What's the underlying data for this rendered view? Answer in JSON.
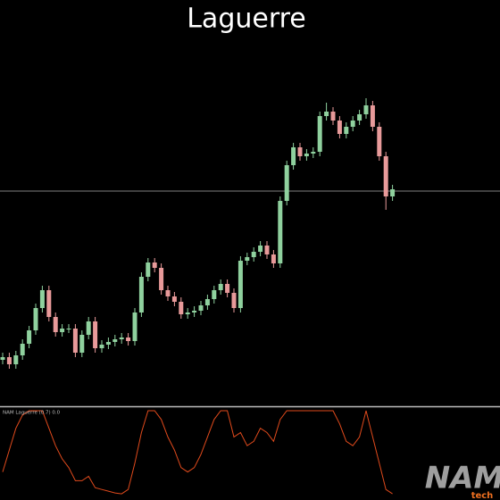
{
  "chart_data": [
    {
      "type": "candlestick",
      "title": "Laguerre",
      "up_color": "#8fd19e",
      "down_color": "#e89a9a",
      "ylim": [
        0,
        455
      ],
      "hline": 241,
      "candles": [
        [
          52,
          60,
          47,
          55
        ],
        [
          55,
          60,
          42,
          47
        ],
        [
          47,
          62,
          42,
          57
        ],
        [
          57,
          75,
          52,
          70
        ],
        [
          70,
          90,
          65,
          85
        ],
        [
          85,
          115,
          80,
          110
        ],
        [
          110,
          135,
          105,
          130
        ],
        [
          130,
          135,
          95,
          100
        ],
        [
          100,
          105,
          78,
          83
        ],
        [
          83,
          92,
          78,
          87
        ],
        [
          87,
          92,
          82,
          87
        ],
        [
          87,
          92,
          55,
          60
        ],
        [
          60,
          85,
          55,
          80
        ],
        [
          80,
          100,
          75,
          95
        ],
        [
          95,
          100,
          60,
          65
        ],
        [
          65,
          74,
          60,
          69
        ],
        [
          69,
          77,
          64,
          72
        ],
        [
          72,
          80,
          67,
          75
        ],
        [
          75,
          82,
          70,
          77
        ],
        [
          77,
          82,
          68,
          73
        ],
        [
          73,
          110,
          68,
          105
        ],
        [
          105,
          150,
          100,
          145
        ],
        [
          145,
          166,
          140,
          161
        ],
        [
          161,
          166,
          150,
          155
        ],
        [
          155,
          160,
          125,
          130
        ],
        [
          130,
          135,
          118,
          123
        ],
        [
          123,
          128,
          112,
          117
        ],
        [
          117,
          122,
          98,
          103
        ],
        [
          103,
          110,
          98,
          105
        ],
        [
          105,
          112,
          100,
          107
        ],
        [
          107,
          118,
          102,
          113
        ],
        [
          113,
          125,
          108,
          120
        ],
        [
          120,
          135,
          115,
          130
        ],
        [
          130,
          142,
          125,
          137
        ],
        [
          137,
          142,
          122,
          127
        ],
        [
          127,
          132,
          105,
          110
        ],
        [
          110,
          168,
          105,
          163
        ],
        [
          163,
          172,
          158,
          167
        ],
        [
          167,
          178,
          162,
          173
        ],
        [
          173,
          185,
          168,
          180
        ],
        [
          180,
          185,
          165,
          170
        ],
        [
          170,
          175,
          155,
          160
        ],
        [
          160,
          235,
          155,
          230
        ],
        [
          230,
          275,
          225,
          270
        ],
        [
          270,
          295,
          265,
          290
        ],
        [
          290,
          295,
          275,
          280
        ],
        [
          280,
          288,
          275,
          283
        ],
        [
          283,
          290,
          278,
          285
        ],
        [
          285,
          330,
          280,
          325
        ],
        [
          325,
          340,
          320,
          330
        ],
        [
          330,
          335,
          315,
          320
        ],
        [
          320,
          325,
          300,
          305
        ],
        [
          305,
          318,
          300,
          313
        ],
        [
          313,
          325,
          308,
          320
        ],
        [
          320,
          332,
          315,
          327
        ],
        [
          327,
          345,
          322,
          337
        ],
        [
          337,
          342,
          308,
          313
        ],
        [
          313,
          318,
          275,
          280
        ],
        [
          280,
          285,
          220,
          235
        ],
        [
          235,
          248,
          230,
          243
        ]
      ]
    },
    {
      "type": "line",
      "label": "NAM Laguerre (0.7) 0.0",
      "color": "#e04a1c",
      "ylim": [
        0,
        1
      ],
      "values": [
        0.3,
        0.55,
        0.8,
        0.95,
        1,
        1,
        1,
        0.8,
        0.6,
        0.45,
        0.35,
        0.2,
        0.2,
        0.25,
        0.12,
        0.1,
        0.08,
        0.06,
        0.05,
        0.1,
        0.4,
        0.75,
        1,
        1,
        0.9,
        0.7,
        0.55,
        0.35,
        0.3,
        0.35,
        0.5,
        0.7,
        0.9,
        1,
        1,
        0.7,
        0.75,
        0.6,
        0.65,
        0.8,
        0.75,
        0.65,
        0.9,
        1,
        1,
        1,
        1,
        1,
        1,
        1,
        1,
        0.85,
        0.65,
        0.6,
        0.7,
        1,
        0.7,
        0.4,
        0.1,
        0.05
      ]
    }
  ],
  "logo": {
    "main": "NAM",
    "sub": "tech"
  }
}
